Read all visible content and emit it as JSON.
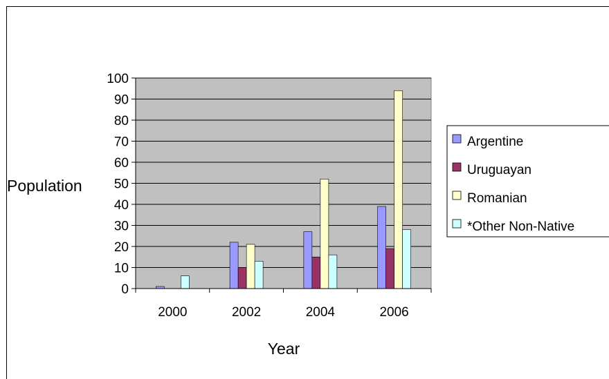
{
  "chart_data": {
    "type": "bar",
    "categories": [
      "2000",
      "2002",
      "2004",
      "2006"
    ],
    "series": [
      {
        "name": "Argentine",
        "values": [
          1,
          22,
          27,
          39
        ],
        "color": "#9999ff"
      },
      {
        "name": "Uruguayan",
        "values": [
          0,
          10,
          15,
          19
        ],
        "color": "#993366"
      },
      {
        "name": "Romanian",
        "values": [
          0,
          21,
          52,
          94
        ],
        "color": "#ffffcc"
      },
      {
        "name": "*Other Non-Native",
        "values": [
          6,
          13,
          16,
          28
        ],
        "color": "#ccffff"
      }
    ],
    "xlabel": "Year",
    "ylabel": "Population",
    "ylim": [
      0,
      100
    ],
    "yticks": [
      "0",
      "10",
      "20",
      "30",
      "40",
      "50",
      "60",
      "70",
      "80",
      "90",
      "100"
    ],
    "plot_background": "#c0c0c0",
    "grid": true,
    "legend": "right"
  }
}
